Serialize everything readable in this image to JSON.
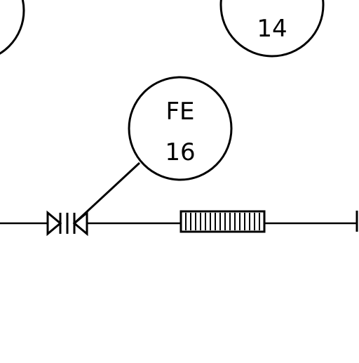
{
  "diagram": {
    "bubble_partial_left": {
      "line1": "",
      "line2": ""
    },
    "bubble_top_right": {
      "line1": "",
      "line2": "14"
    },
    "bubble_center": {
      "line1": "FE",
      "line2": "16"
    }
  },
  "colors": {
    "ink": "#000000",
    "background": "#ffffff"
  }
}
